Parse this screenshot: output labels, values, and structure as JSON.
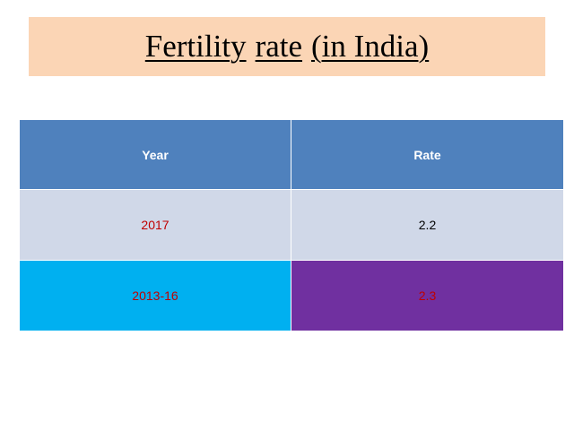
{
  "title": {
    "part1": "Fertility",
    "part2": "rate",
    "part3": "(in India)"
  },
  "table": {
    "headers": [
      "Year",
      "Rate"
    ],
    "rows": [
      {
        "year": "2017",
        "rate": "2.2",
        "year_bg": "#d0d8e8",
        "rate_bg": "#d0d8e8",
        "year_color": "#c00000",
        "rate_color": "#000000"
      },
      {
        "year": "2013-16",
        "rate": "2.3",
        "year_bg": "#00b0f0",
        "rate_bg": "#7030a0",
        "year_color": "#c00000",
        "rate_color": "#c00000"
      }
    ]
  },
  "colors": {
    "title_background": "#fbd5b5",
    "header_background": "#4f81bd",
    "header_text": "#ffffff"
  }
}
